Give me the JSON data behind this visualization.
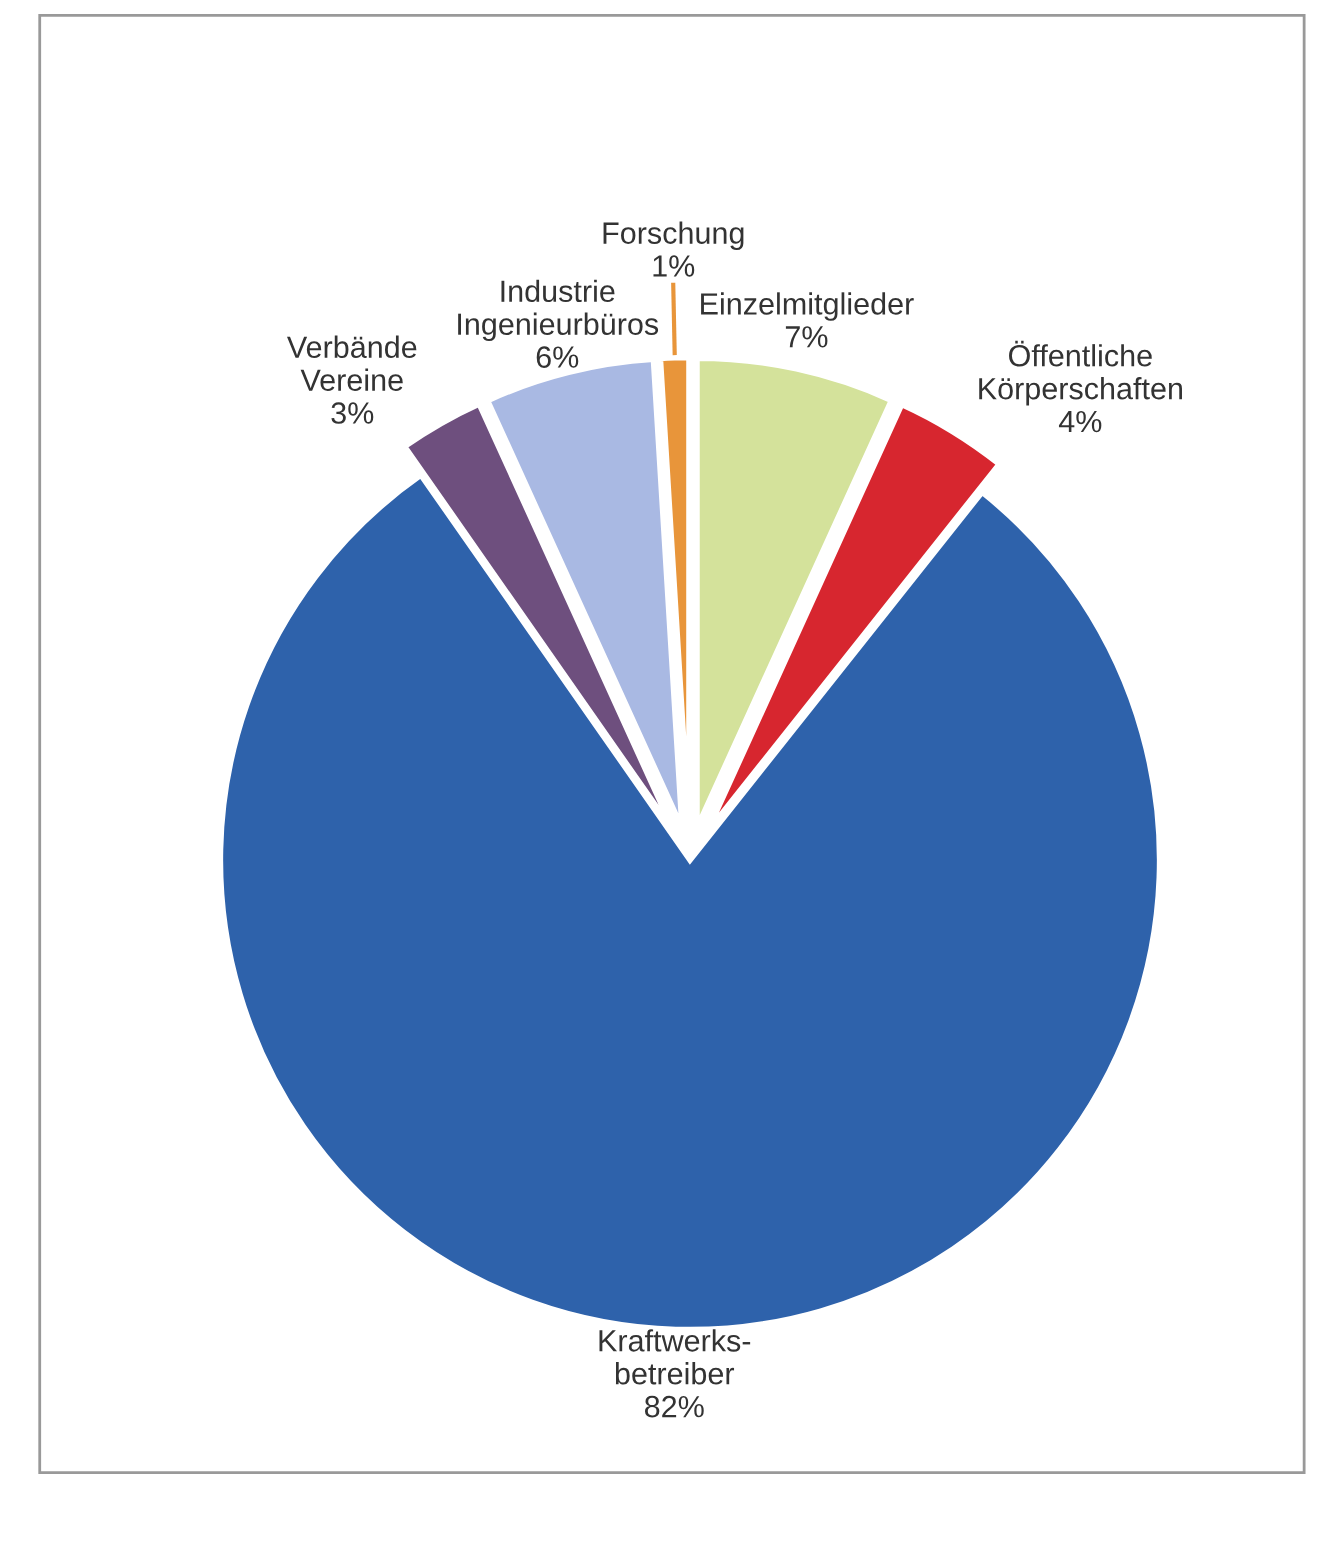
{
  "chart_data": {
    "type": "pie",
    "categories": [
      "Forschung",
      "Industrie\nIngenieurbüros",
      "Verbände\nVereine",
      "Kraftwerks-\nbetreiber",
      "Öffentliche\nKörperschaften",
      "Einzelmitglieder"
    ],
    "values": [
      1,
      6,
      3,
      82,
      4,
      7
    ],
    "value_labels": [
      "1%",
      "6%",
      "3%",
      "82%",
      "4%",
      "7%"
    ],
    "colors": [
      "#e8953a",
      "#a9b9e3",
      "#6e4f7e",
      "#2e62ab",
      "#d7262f",
      "#d4e29b"
    ],
    "legend": false
  }
}
